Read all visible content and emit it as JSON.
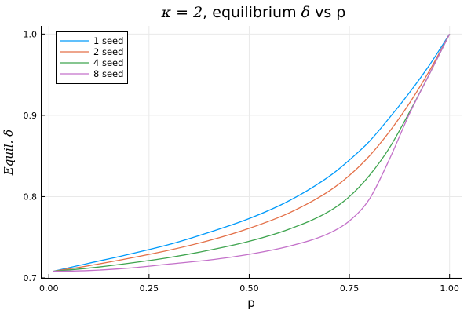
{
  "chart_data": {
    "type": "line",
    "title": {
      "prefix_math": "κ = 2",
      "text": ", equilibrium ",
      "math": "δ",
      "suffix": " vs p"
    },
    "xlabel": "p",
    "ylabel": "Equil. δ",
    "xlim": [
      -0.02,
      1.03
    ],
    "ylim": [
      0.7,
      1.01
    ],
    "x_ticks": [
      0.0,
      0.25,
      0.5,
      0.75,
      1.0
    ],
    "x_tick_labels": [
      "0.00",
      "0.25",
      "0.50",
      "0.75",
      "1.00"
    ],
    "y_ticks": [
      0.7,
      0.8,
      0.9,
      1.0
    ],
    "y_tick_labels": [
      "0.7",
      "0.8",
      "0.9",
      "1.0"
    ],
    "grid": true,
    "legend_position": "top-left",
    "x": [
      0.01,
      0.1,
      0.2,
      0.3,
      0.4,
      0.5,
      0.6,
      0.7,
      0.75,
      0.8,
      0.85,
      0.9,
      0.95,
      1.0
    ],
    "series": [
      {
        "name": "1 seed",
        "color": "#009AFA",
        "values": [
          0.708,
          0.718,
          0.729,
          0.741,
          0.756,
          0.773,
          0.795,
          0.825,
          0.845,
          0.868,
          0.897,
          0.928,
          0.962,
          1.0
        ]
      },
      {
        "name": "2 seed",
        "color": "#E36F47",
        "values": [
          0.708,
          0.715,
          0.724,
          0.734,
          0.746,
          0.761,
          0.78,
          0.807,
          0.826,
          0.85,
          0.88,
          0.915,
          0.955,
          1.0
        ]
      },
      {
        "name": "4 seed",
        "color": "#3EA44E",
        "values": [
          0.708,
          0.712,
          0.718,
          0.725,
          0.734,
          0.745,
          0.76,
          0.782,
          0.8,
          0.826,
          0.86,
          0.904,
          0.951,
          1.0
        ]
      },
      {
        "name": "8 seed",
        "color": "#C370C9",
        "values": [
          0.708,
          0.709,
          0.712,
          0.717,
          0.722,
          0.729,
          0.739,
          0.755,
          0.77,
          0.797,
          0.846,
          0.902,
          0.951,
          1.0
        ]
      }
    ]
  }
}
